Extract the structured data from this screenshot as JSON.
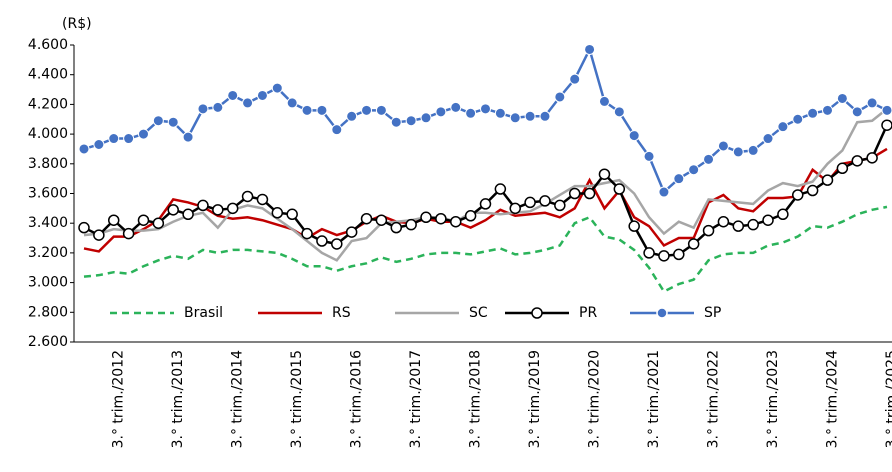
{
  "chart_data": {
    "type": "line",
    "y_label": "(R$)",
    "categories": [
      null,
      null,
      "3.° trim./2012",
      null,
      null,
      null,
      "3.° trim./2013",
      null,
      null,
      null,
      "3.° trim./2014",
      null,
      null,
      null,
      "3.° trim./2015",
      null,
      null,
      null,
      "3.° trim./2016",
      null,
      null,
      null,
      "3.° trim./2017",
      null,
      null,
      null,
      "3.° trim./2018",
      null,
      null,
      null,
      "3.° trim./2019",
      null,
      null,
      null,
      "3.° trim./2020",
      null,
      null,
      null,
      "3.° trim./2021",
      null,
      null,
      null,
      "3.° trim./2022",
      null,
      null,
      null,
      "3.° trim./2023",
      null,
      null,
      null,
      "3.° trim./2024",
      null,
      null,
      null,
      "3.° trim./2025"
    ],
    "series": [
      {
        "name": "Brasil",
        "color": "#2bb35a",
        "dashed": true,
        "marker": "none",
        "values": [
          3040,
          3050,
          3070,
          3060,
          3110,
          3150,
          3180,
          3160,
          3220,
          3200,
          3220,
          3220,
          3210,
          3200,
          3160,
          3110,
          3110,
          3080,
          3110,
          3130,
          3170,
          3140,
          3160,
          3190,
          3200,
          3200,
          3190,
          3210,
          3230,
          3190,
          3200,
          3220,
          3250,
          3400,
          3440,
          3310,
          3290,
          3220,
          3100,
          2940,
          2990,
          3020,
          3150,
          3190,
          3200,
          3200,
          3250,
          3270,
          3310,
          3380,
          3370,
          3410,
          3460,
          3490,
          3510
        ]
      },
      {
        "name": "RS",
        "color": "#c00000",
        "dashed": false,
        "marker": "none",
        "values": [
          3230,
          3210,
          3310,
          3310,
          3360,
          3420,
          3560,
          3540,
          3510,
          3450,
          3430,
          3440,
          3420,
          3390,
          3360,
          3300,
          3360,
          3320,
          3350,
          3410,
          3450,
          3410,
          3400,
          3430,
          3410,
          3410,
          3370,
          3420,
          3490,
          3450,
          3460,
          3470,
          3440,
          3500,
          3690,
          3500,
          3620,
          3440,
          3380,
          3250,
          3300,
          3300,
          3540,
          3590,
          3500,
          3480,
          3570,
          3570,
          3580,
          3760,
          3680,
          3800,
          3820,
          3840,
          3900
        ]
      },
      {
        "name": "SC",
        "color": "#a6a6a6",
        "dashed": false,
        "marker": "none",
        "values": [
          3320,
          3330,
          3360,
          3350,
          3350,
          3360,
          3410,
          3450,
          3470,
          3370,
          3490,
          3520,
          3500,
          3430,
          3360,
          3280,
          3200,
          3150,
          3280,
          3300,
          3400,
          3410,
          3420,
          3440,
          3440,
          3410,
          3470,
          3470,
          3460,
          3470,
          3480,
          3530,
          3590,
          3650,
          3650,
          3670,
          3690,
          3600,
          3440,
          3330,
          3410,
          3370,
          3560,
          3550,
          3540,
          3530,
          3620,
          3670,
          3650,
          3680,
          3800,
          3890,
          4080,
          4090,
          4170
        ]
      },
      {
        "name": "PR",
        "color": "#000000",
        "dashed": false,
        "marker": "open",
        "values": [
          3370,
          3320,
          3420,
          3330,
          3420,
          3400,
          3490,
          3460,
          3520,
          3490,
          3500,
          3580,
          3560,
          3470,
          3460,
          3330,
          3280,
          3260,
          3340,
          3430,
          3420,
          3370,
          3390,
          3440,
          3430,
          3410,
          3450,
          3530,
          3630,
          3500,
          3540,
          3550,
          3520,
          3600,
          3600,
          3730,
          3630,
          3380,
          3200,
          3180,
          3190,
          3260,
          3350,
          3410,
          3380,
          3390,
          3420,
          3460,
          3590,
          3620,
          3690,
          3770,
          3820,
          3840,
          4060
        ]
      },
      {
        "name": "SP",
        "color": "#4472c4",
        "dashed": false,
        "marker": "filled",
        "values": [
          3900,
          3930,
          3970,
          3970,
          4000,
          4090,
          4080,
          3980,
          4170,
          4180,
          4260,
          4210,
          4260,
          4310,
          4210,
          4160,
          4160,
          4030,
          4120,
          4160,
          4160,
          4080,
          4090,
          4110,
          4150,
          4180,
          4140,
          4170,
          4140,
          4110,
          4120,
          4120,
          4250,
          4370,
          4570,
          4220,
          4150,
          3990,
          3850,
          3610,
          3700,
          3760,
          3830,
          3920,
          3880,
          3890,
          3970,
          4050,
          4100,
          4140,
          4160,
          4240,
          4150,
          4210,
          4160
        ]
      }
    ],
    "ylim": [
      2600,
      4600
    ],
    "yticks": [
      {
        "value": 2600,
        "label": "2.600"
      },
      {
        "value": 2800,
        "label": "2.800"
      },
      {
        "value": 3000,
        "label": "3.000"
      },
      {
        "value": 3200,
        "label": "3.200"
      },
      {
        "value": 3400,
        "label": "3.400"
      },
      {
        "value": 3600,
        "label": "3.600"
      },
      {
        "value": 3800,
        "label": "3.800"
      },
      {
        "value": 4000,
        "label": "4.000"
      },
      {
        "value": 4200,
        "label": "4.200"
      },
      {
        "value": 4400,
        "label": "4.400"
      },
      {
        "value": 4600,
        "label": "4.600"
      }
    ],
    "grid": false,
    "legend": "inside-bottom"
  }
}
